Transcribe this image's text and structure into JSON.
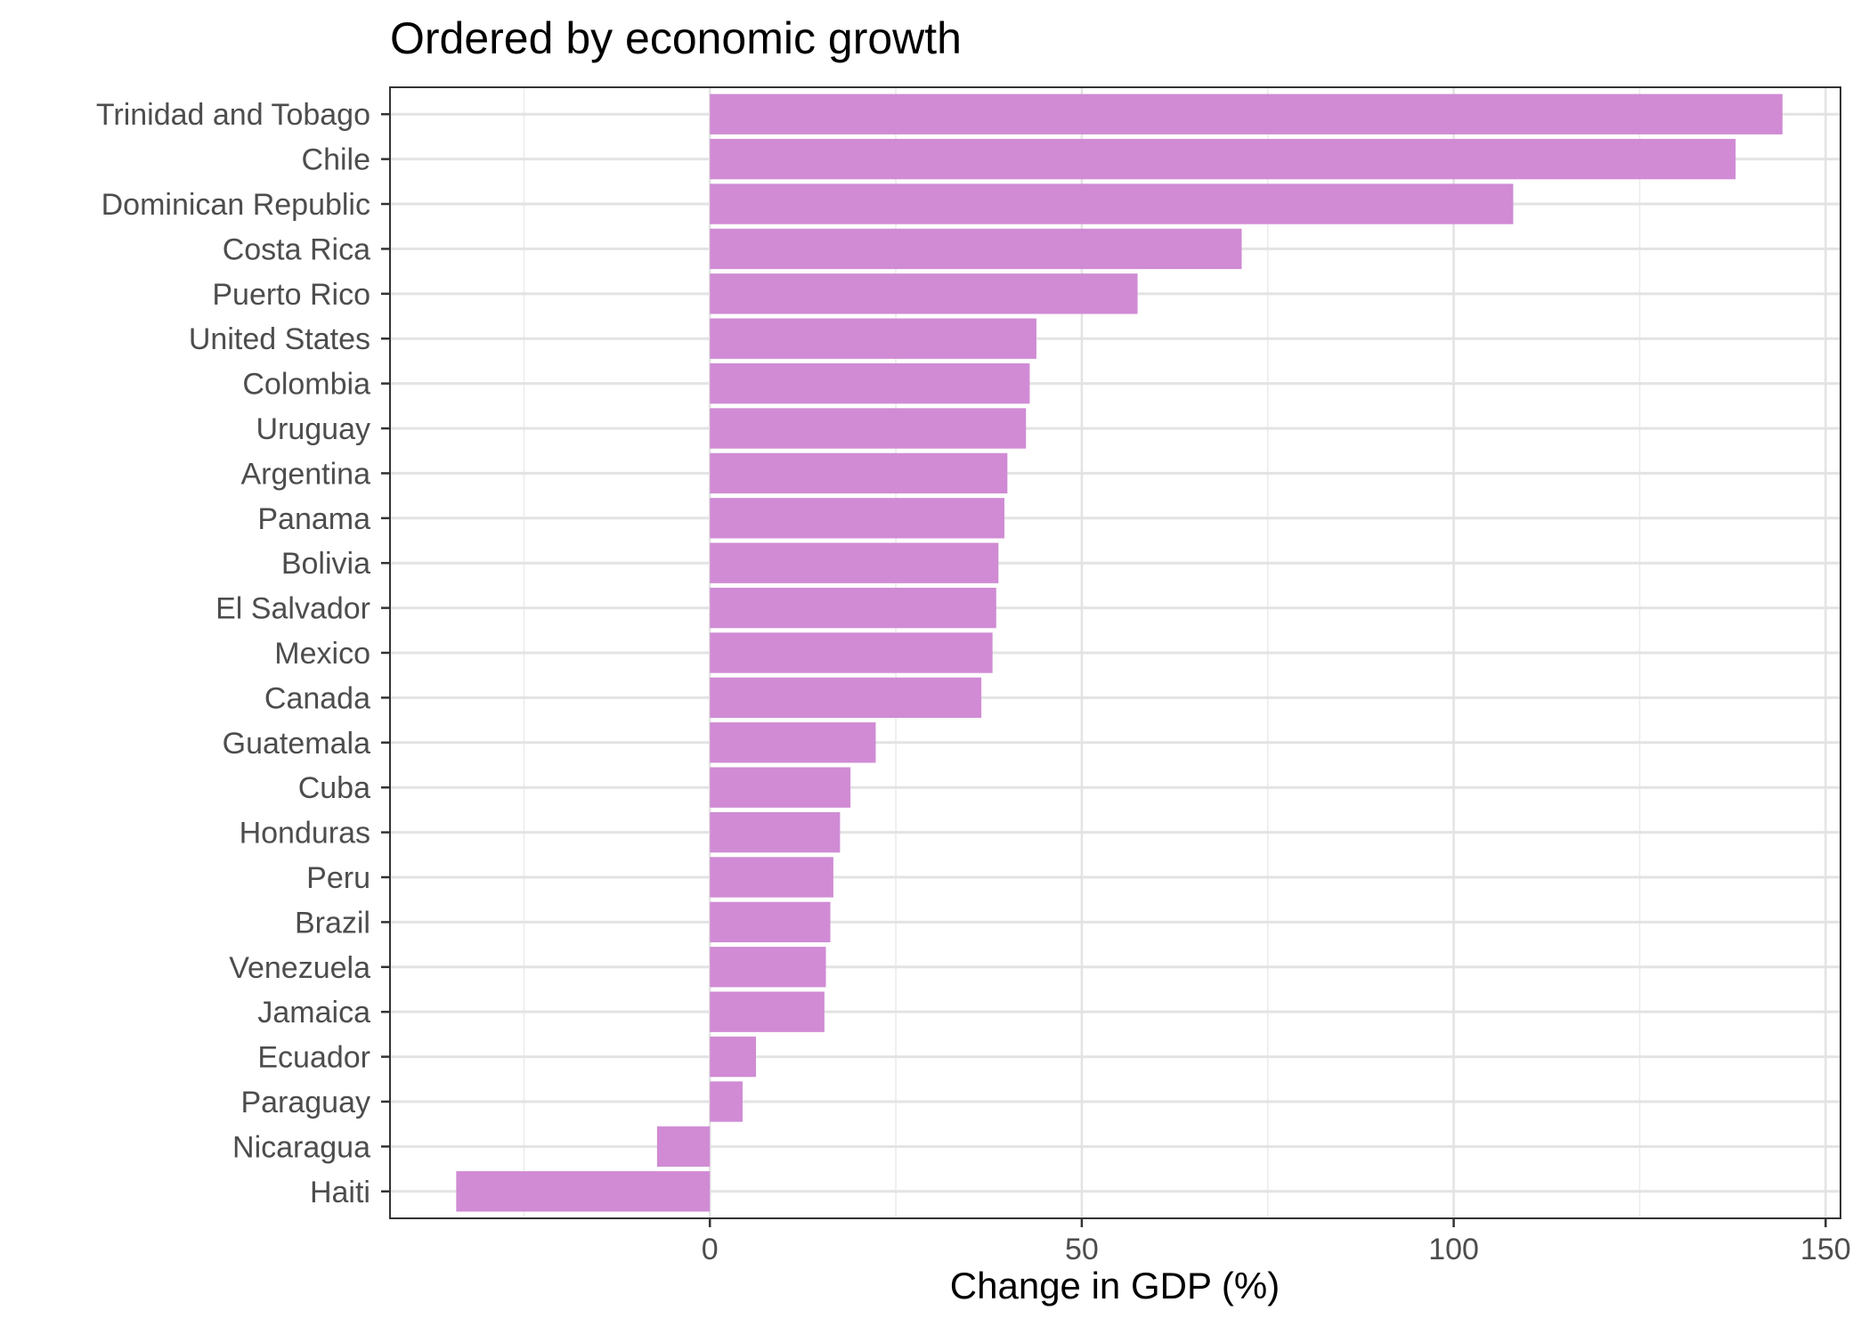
{
  "chart_data": {
    "type": "bar",
    "orientation": "horizontal",
    "title": "Ordered by economic growth",
    "xlabel": "Change in GDP (%)",
    "ylabel": "",
    "xlim": [
      -43,
      152
    ],
    "x_ticks": [
      0,
      50,
      100,
      150
    ],
    "grid": true,
    "bar_color": "#d08bd4",
    "categories": [
      "Trinidad and Tobago",
      "Chile",
      "Dominican Republic",
      "Costa Rica",
      "Puerto Rico",
      "United States",
      "Colombia",
      "Uruguay",
      "Argentina",
      "Panama",
      "Bolivia",
      "El Salvador",
      "Mexico",
      "Canada",
      "Guatemala",
      "Cuba",
      "Honduras",
      "Peru",
      "Brazil",
      "Venezuela",
      "Jamaica",
      "Ecuador",
      "Paraguay",
      "Nicaragua",
      "Haiti"
    ],
    "values": [
      144.2,
      137.9,
      108.0,
      71.5,
      57.5,
      43.9,
      43.0,
      42.5,
      40.0,
      39.6,
      38.8,
      38.5,
      38.0,
      36.5,
      22.3,
      18.9,
      17.5,
      16.6,
      16.2,
      15.6,
      15.4,
      6.2,
      4.4,
      -7.1,
      -34.1
    ]
  }
}
